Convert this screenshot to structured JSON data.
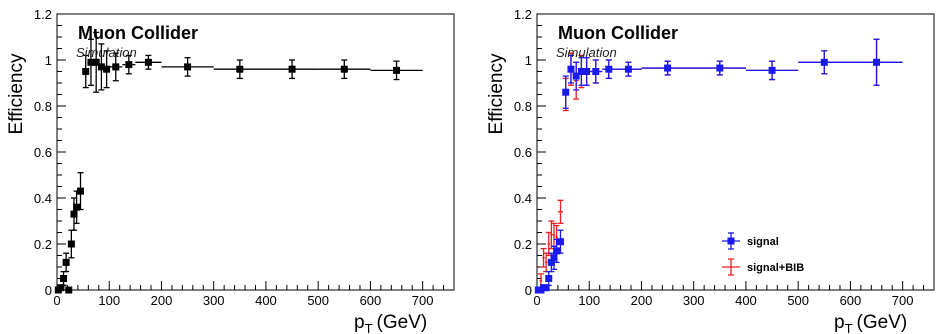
{
  "chart_data": [
    {
      "type": "scatter",
      "title": "Muon Collider",
      "subtitle": "Simulation",
      "xlabel_main": "p",
      "xlabel_sub": "T",
      "xlabel_unit": "(GeV)",
      "ylabel": "Efficiency",
      "xlim": [
        0,
        760
      ],
      "ylim": [
        0,
        1.2
      ],
      "xticks": [
        0,
        100,
        200,
        300,
        400,
        500,
        600,
        700
      ],
      "yticks": [
        0,
        0.2,
        0.4,
        0.6,
        0.8,
        1,
        1.2
      ],
      "ytick_labels": [
        "0",
        "0.2",
        "0.4",
        "0.6",
        "0.8",
        "1",
        "1.2"
      ],
      "series": [
        {
          "color": "#000000",
          "marker": "square",
          "points": [
            {
              "x": 2.5,
              "xerr": 2.5,
              "y": 0.0,
              "err": 0.01
            },
            {
              "x": 7.5,
              "xerr": 2.5,
              "y": 0.01,
              "err": 0.01
            },
            {
              "x": 12.5,
              "xerr": 2.5,
              "y": 0.05,
              "err": 0.03
            },
            {
              "x": 17.5,
              "xerr": 2.5,
              "y": 0.12,
              "err": 0.04
            },
            {
              "x": 22.5,
              "xerr": 2.5,
              "y": 0.0,
              "err": 0.01
            },
            {
              "x": 27.5,
              "xerr": 2.5,
              "y": 0.2,
              "err": 0.06
            },
            {
              "x": 32.5,
              "xerr": 2.5,
              "y": 0.33,
              "err": 0.07
            },
            {
              "x": 37.5,
              "xerr": 2.5,
              "y": 0.36,
              "err": 0.07
            },
            {
              "x": 45,
              "xerr": 5,
              "y": 0.43,
              "err": 0.08
            },
            {
              "x": 55,
              "xerr": 5,
              "y": 0.95,
              "err": 0.07
            },
            {
              "x": 65,
              "xerr": 5,
              "y": 0.99,
              "err": 0.1
            },
            {
              "x": 75,
              "xerr": 5,
              "y": 0.99,
              "err": 0.13
            },
            {
              "x": 85,
              "xerr": 5,
              "y": 0.97,
              "err": 0.1
            },
            {
              "x": 95,
              "xerr": 5,
              "y": 0.96,
              "err": 0.08
            },
            {
              "x": 112.5,
              "xerr": 12.5,
              "y": 0.97,
              "err": 0.06
            },
            {
              "x": 137.5,
              "xerr": 12.5,
              "y": 0.98,
              "err": 0.04
            },
            {
              "x": 175,
              "xerr": 25,
              "y": 0.99,
              "err": 0.03
            },
            {
              "x": 250,
              "xerr": 50,
              "y": 0.97,
              "err": 0.04
            },
            {
              "x": 350,
              "xerr": 50,
              "y": 0.96,
              "err": 0.04
            },
            {
              "x": 450,
              "xerr": 50,
              "y": 0.96,
              "err": 0.04
            },
            {
              "x": 550,
              "xerr": 50,
              "y": 0.96,
              "err": 0.04
            },
            {
              "x": 650,
              "xerr": 50,
              "y": 0.955,
              "err": 0.04
            }
          ]
        }
      ]
    },
    {
      "type": "scatter",
      "title": "Muon Collider",
      "subtitle": "Simulation",
      "xlabel_main": "p",
      "xlabel_sub": "T",
      "xlabel_unit": "(GeV)",
      "ylabel": "Efficiency",
      "xlim": [
        0,
        760
      ],
      "ylim": [
        0,
        1.2
      ],
      "xticks": [
        0,
        100,
        200,
        300,
        400,
        500,
        600,
        700
      ],
      "yticks": [
        0,
        0.2,
        0.4,
        0.6,
        0.8,
        1,
        1.2
      ],
      "ytick_labels": [
        "0",
        "0.2",
        "0.4",
        "0.6",
        "0.8",
        "1",
        "1.2"
      ],
      "legend": {
        "position": "bottom-right"
      },
      "series": [
        {
          "name": "signal",
          "color": "#1a1aee",
          "marker": "square",
          "points": [
            {
              "x": 2.5,
              "xerr": 2.5,
              "y": 0.0,
              "err": 0.005
            },
            {
              "x": 7.5,
              "xerr": 2.5,
              "y": 0.0,
              "err": 0.005
            },
            {
              "x": 12.5,
              "xerr": 2.5,
              "y": 0.01,
              "err": 0.01
            },
            {
              "x": 17.5,
              "xerr": 2.5,
              "y": 0.01,
              "err": 0.01
            },
            {
              "x": 22.5,
              "xerr": 2.5,
              "y": 0.05,
              "err": 0.03
            },
            {
              "x": 27.5,
              "xerr": 2.5,
              "y": 0.12,
              "err": 0.04
            },
            {
              "x": 32.5,
              "xerr": 2.5,
              "y": 0.14,
              "err": 0.05
            },
            {
              "x": 37.5,
              "xerr": 2.5,
              "y": 0.17,
              "err": 0.05
            },
            {
              "x": 45,
              "xerr": 5,
              "y": 0.21,
              "err": 0.05
            },
            {
              "x": 55,
              "xerr": 5,
              "y": 0.86,
              "err": 0.07
            },
            {
              "x": 65,
              "xerr": 5,
              "y": 0.96,
              "err": 0.06
            },
            {
              "x": 75,
              "xerr": 5,
              "y": 0.93,
              "err": 0.06
            },
            {
              "x": 85,
              "xerr": 5,
              "y": 0.95,
              "err": 0.06
            },
            {
              "x": 95,
              "xerr": 5,
              "y": 0.95,
              "err": 0.06
            },
            {
              "x": 112.5,
              "xerr": 12.5,
              "y": 0.95,
              "err": 0.05
            },
            {
              "x": 137.5,
              "xerr": 12.5,
              "y": 0.96,
              "err": 0.04
            },
            {
              "x": 175,
              "xerr": 25,
              "y": 0.96,
              "err": 0.03
            },
            {
              "x": 250,
              "xerr": 50,
              "y": 0.965,
              "err": 0.03
            },
            {
              "x": 350,
              "xerr": 50,
              "y": 0.965,
              "err": 0.03
            },
            {
              "x": 450,
              "xerr": 50,
              "y": 0.955,
              "err": 0.04
            },
            {
              "x": 550,
              "xerr": 50,
              "y": 0.99,
              "err": 0.05
            },
            {
              "x": 650,
              "xerr": 50,
              "y": 0.99,
              "err": 0.1
            }
          ]
        },
        {
          "name": "signal+BIB",
          "color": "#e82020",
          "marker": "none",
          "points": [
            {
              "x": 2.5,
              "xerr": 2.5,
              "y": 0.0,
              "err": 0.01
            },
            {
              "x": 7.5,
              "xerr": 2.5,
              "y": 0.04,
              "err": 0.03
            },
            {
              "x": 12.5,
              "xerr": 2.5,
              "y": 0.14,
              "err": 0.04
            },
            {
              "x": 17.5,
              "xerr": 2.5,
              "y": 0.12,
              "err": 0.04
            },
            {
              "x": 22.5,
              "xerr": 2.5,
              "y": 0.2,
              "err": 0.05
            },
            {
              "x": 27.5,
              "xerr": 2.5,
              "y": 0.24,
              "err": 0.06
            },
            {
              "x": 32.5,
              "xerr": 2.5,
              "y": 0.24,
              "err": 0.05
            },
            {
              "x": 37.5,
              "xerr": 2.5,
              "y": 0.23,
              "err": 0.05
            },
            {
              "x": 45,
              "xerr": 5,
              "y": 0.34,
              "err": 0.05
            },
            {
              "x": 55,
              "xerr": 5,
              "y": 0.85,
              "err": 0.07
            },
            {
              "x": 65,
              "xerr": 5,
              "y": 0.96,
              "err": 0.07
            },
            {
              "x": 75,
              "xerr": 5,
              "y": 0.91,
              "err": 0.08
            },
            {
              "x": 85,
              "xerr": 5,
              "y": 0.95,
              "err": 0.07
            },
            {
              "x": 95,
              "xerr": 5,
              "y": 0.95,
              "err": 0.06
            },
            {
              "x": 112.5,
              "xerr": 12.5,
              "y": 0.95,
              "err": 0.05
            },
            {
              "x": 137.5,
              "xerr": 12.5,
              "y": 0.96,
              "err": 0.04
            },
            {
              "x": 175,
              "xerr": 25,
              "y": 0.96,
              "err": 0.03
            },
            {
              "x": 250,
              "xerr": 50,
              "y": 0.965,
              "err": 0.03
            },
            {
              "x": 350,
              "xerr": 50,
              "y": 0.965,
              "err": 0.03
            },
            {
              "x": 450,
              "xerr": 50,
              "y": 0.955,
              "err": 0.04
            },
            {
              "x": 550,
              "xerr": 50,
              "y": 0.99,
              "err": 0.05
            },
            {
              "x": 650,
              "xerr": 50,
              "y": 0.99,
              "err": 0.1
            }
          ]
        }
      ]
    }
  ]
}
